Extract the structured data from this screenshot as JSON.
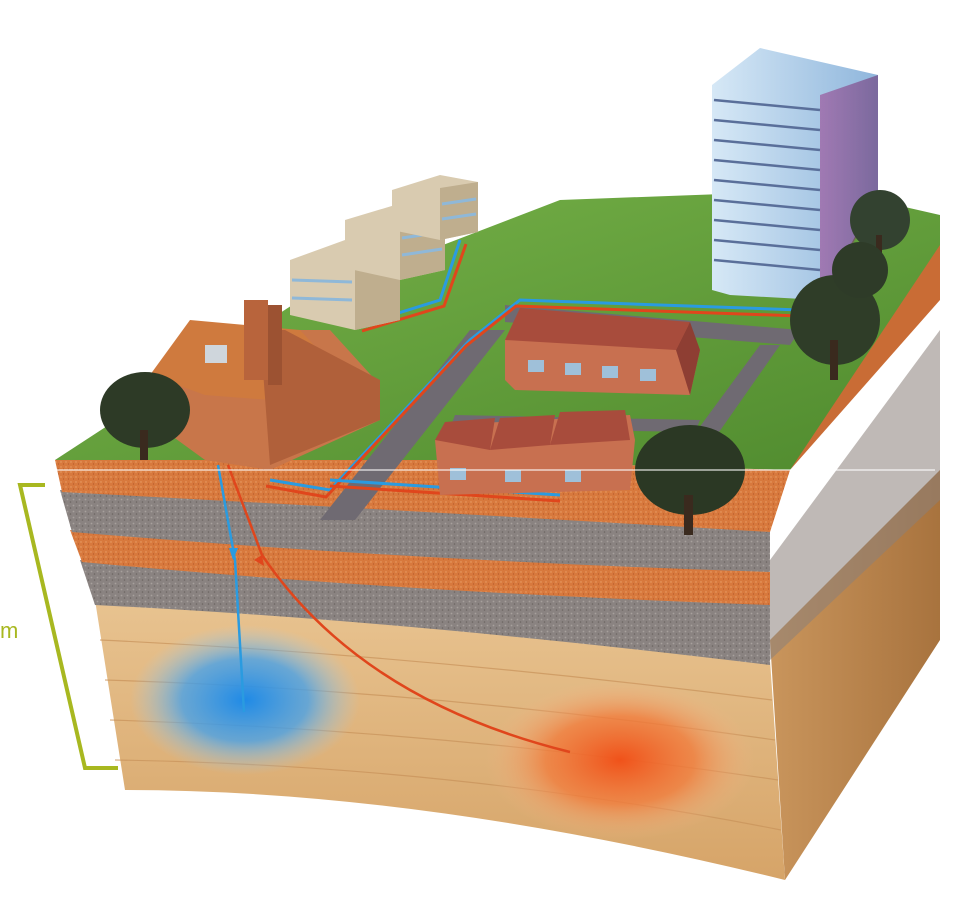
{
  "depth_label": {
    "text": "m",
    "color": "#a8b820"
  },
  "colors": {
    "grass": "#5c9a36",
    "road": "#6f6a72",
    "soil_orange": "#d97a3c",
    "gravel": "#8d8684",
    "sand": "#e3b87c",
    "cold_pipe": "#2a9be0",
    "hot_pipe": "#e0461c",
    "cold_zone": "#1f8ae6",
    "warm_zone": "#f06020",
    "brick": "#c8764a",
    "roof": "#a84c3c",
    "tower_glass": "#b9d6ee"
  },
  "elements": {
    "cold_well": "cold-water-well",
    "warm_well": "warm-water-well",
    "buildings": [
      "factory",
      "apartment-block-1",
      "apartment-block-2",
      "apartment-block-3",
      "office-tower",
      "terraced-houses",
      "house-row"
    ]
  }
}
